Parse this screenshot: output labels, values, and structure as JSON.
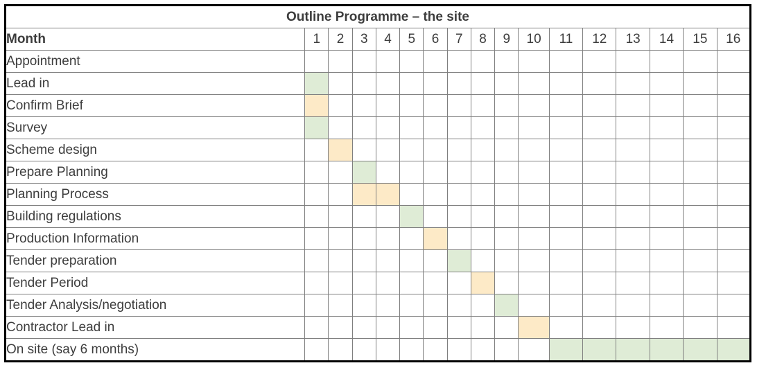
{
  "title": "Outline Programme – the site",
  "header": {
    "label": "Month",
    "months": [
      "1",
      "2",
      "3",
      "4",
      "5",
      "6",
      "7",
      "8",
      "9",
      "10",
      "11",
      "12",
      "13",
      "14",
      "15",
      "16"
    ]
  },
  "colors": {
    "green": "#dfecd6",
    "orange": "#fdeac7",
    "grid": "#7f7f7f",
    "outer_border": "#000000",
    "text": "#3d3d3d"
  },
  "chart_data": {
    "type": "gantt",
    "title": "Outline Programme – the site",
    "x_axis_label": "Month",
    "x_range": [
      1,
      16
    ],
    "grid": true,
    "tasks": [
      {
        "name": "Appointment",
        "months": [],
        "color": "none"
      },
      {
        "name": "Lead in",
        "months": [
          1
        ],
        "color": "green"
      },
      {
        "name": "Confirm Brief",
        "months": [
          1
        ],
        "color": "orange"
      },
      {
        "name": "Survey",
        "months": [
          1
        ],
        "color": "green"
      },
      {
        "name": "Scheme design",
        "months": [
          2
        ],
        "color": "orange"
      },
      {
        "name": "Prepare Planning",
        "months": [
          3
        ],
        "color": "green"
      },
      {
        "name": "Planning Process",
        "months": [
          3,
          4
        ],
        "color": "orange"
      },
      {
        "name": "Building regulations",
        "months": [
          5
        ],
        "color": "green"
      },
      {
        "name": "Production Information",
        "months": [
          6
        ],
        "color": "orange"
      },
      {
        "name": "Tender preparation",
        "months": [
          7
        ],
        "color": "green"
      },
      {
        "name": "Tender Period",
        "months": [
          8
        ],
        "color": "orange"
      },
      {
        "name": "Tender Analysis/negotiation",
        "months": [
          9
        ],
        "color": "green"
      },
      {
        "name": "Contractor Lead in",
        "months": [
          10
        ],
        "color": "orange"
      },
      {
        "name": "On site (say 6 months)",
        "months": [
          11,
          12,
          13,
          14,
          15,
          16
        ],
        "color": "green"
      }
    ]
  }
}
